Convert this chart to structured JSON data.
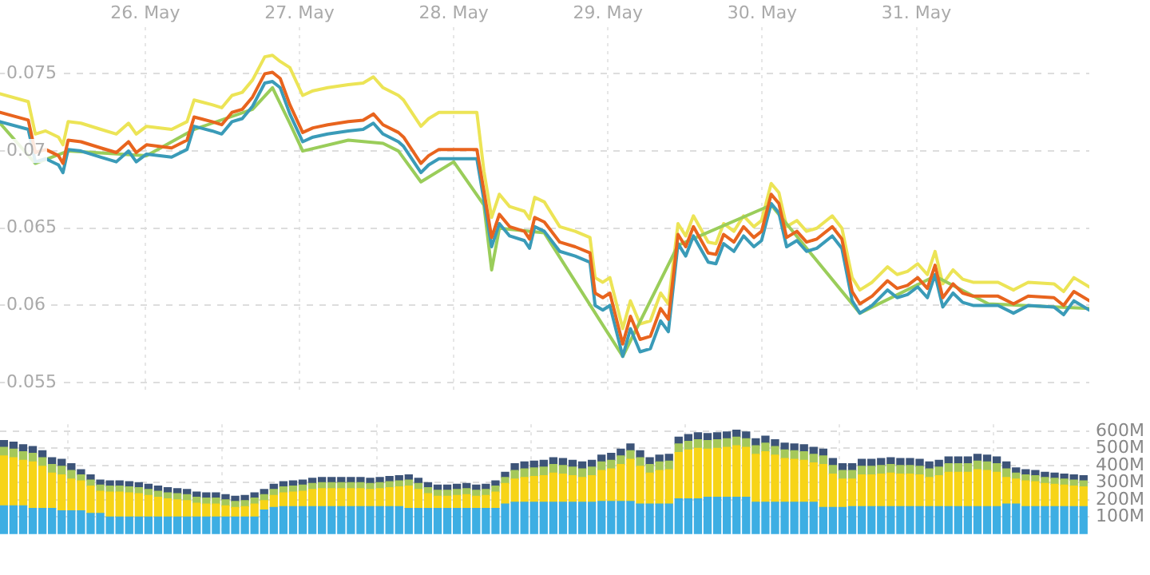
{
  "chart_data": [
    {
      "type": "line",
      "x": [
        "--05-25T01:24",
        "--05-25T05:48",
        "--05-25T06:54",
        "--05-25T08:30",
        "--05-25T10:30",
        "--05-25T11:12",
        "--05-25T12:00",
        "--05-25T14:00",
        "--05-25T17:06",
        "--05-25T19:30",
        "--05-25T21:24",
        "--05-25T22:36",
        "--05-26T00:12",
        "--05-26T04:06",
        "--05-26T06:30",
        "--05-26T07:36",
        "--05-26T10:24",
        "--05-26T11:54",
        "--05-26T13:30",
        "--05-26T15:06",
        "--05-26T16:42",
        "--05-26T18:36",
        "--05-26T19:48",
        "--05-26T21:00",
        "--05-26T22:30",
        "--05-27T00:30",
        "--05-27T02:06",
        "--05-27T04:24",
        "--05-27T07:36",
        "--05-27T09:54",
        "--05-27T11:30",
        "--05-27T13:00",
        "--05-27T15:24",
        "--05-27T16:12",
        "--05-27T18:54",
        "--05-27T20:06",
        "--05-27T21:42",
        "--05-28T00:00",
        "--05-28T03:36",
        "--05-28T04:42",
        "--05-28T05:54",
        "--05-28T07:06",
        "--05-28T08:42",
        "--05-28T11:00",
        "--05-28T11:48",
        "--05-28T12:36",
        "--05-28T14:06",
        "--05-28T16:30",
        "--05-28T18:54",
        "--05-28T21:12",
        "--05-28T22:00",
        "--05-28T23:12",
        "--05-29T00:18",
        "--05-29T02:18",
        "--05-29T03:30",
        "--05-29T05:00",
        "--05-29T06:36",
        "--05-29T08:12",
        "--05-29T09:24",
        "--05-29T10:54",
        "--05-29T12:06",
        "--05-29T13:18",
        "--05-29T15:36",
        "--05-29T16:48",
        "--05-29T18:00",
        "--05-29T19:36",
        "--05-29T21:06",
        "--05-29T22:42",
        "--05-29T23:54",
        "--05-30T01:24",
        "--05-30T02:36",
        "--05-30T03:48",
        "--05-30T05:24",
        "--05-30T06:54",
        "--05-30T08:30",
        "--05-30T10:54",
        "--05-30T12:24",
        "--05-30T14:00",
        "--05-30T15:12",
        "--05-30T17:06",
        "--05-30T19:30",
        "--05-30T21:00",
        "--05-30T22:36",
        "--05-31T00:12",
        "--05-31T01:42",
        "--05-31T02:54",
        "--05-31T04:06",
        "--05-31T05:42",
        "--05-31T07:12",
        "--05-31T08:48",
        "--05-31T11:12",
        "--05-31T12:42",
        "--05-31T15:06",
        "--05-31T17:24",
        "--05-31T21:24",
        "--05-31T22:54",
        "--06-01T00:30",
        "--06-01T02:54"
      ],
      "series": [
        {
          "color": "#e8641e",
          "values": [
            0.0725,
            0.072,
            0.0699,
            0.0701,
            0.0697,
            0.0692,
            0.0707,
            0.0706,
            0.0702,
            0.0699,
            0.0706,
            0.0699,
            0.0704,
            0.0702,
            0.0707,
            0.0722,
            0.0719,
            0.0717,
            0.0725,
            0.0727,
            0.0735,
            0.075,
            0.0751,
            0.0747,
            0.073,
            0.0712,
            0.0715,
            0.0717,
            0.0719,
            0.072,
            0.0724,
            0.0717,
            0.0712,
            0.0709,
            0.0692,
            0.0697,
            0.0701,
            0.0701,
            0.0701,
            0.0674,
            0.0644,
            0.0659,
            0.0651,
            0.0648,
            0.0643,
            0.0657,
            0.0654,
            0.0641,
            0.0638,
            0.0634,
            0.0608,
            0.0605,
            0.0608,
            0.0575,
            0.0593,
            0.0578,
            0.058,
            0.0598,
            0.0591,
            0.0646,
            0.0638,
            0.0651,
            0.0634,
            0.0633,
            0.0646,
            0.0641,
            0.0651,
            0.0644,
            0.0648,
            0.0672,
            0.0666,
            0.0644,
            0.0648,
            0.0641,
            0.0643,
            0.0651,
            0.0643,
            0.0609,
            0.0601,
            0.0606,
            0.0616,
            0.0611,
            0.0613,
            0.0618,
            0.0611,
            0.0626,
            0.0605,
            0.0614,
            0.0608,
            0.0606,
            0.0606,
            0.0606,
            0.0601,
            0.0606,
            0.0605,
            0.06,
            0.0609,
            0.0603
          ]
        },
        {
          "color": "#3a9bb8",
          "values": [
            0.0719,
            0.0714,
            0.0693,
            0.0695,
            0.0691,
            0.0686,
            0.0701,
            0.07,
            0.0696,
            0.0693,
            0.07,
            0.0693,
            0.0698,
            0.0696,
            0.0701,
            0.0716,
            0.0713,
            0.0711,
            0.0719,
            0.0721,
            0.0729,
            0.0744,
            0.0745,
            0.0741,
            0.0724,
            0.0706,
            0.0709,
            0.0711,
            0.0713,
            0.0714,
            0.0718,
            0.0711,
            0.0706,
            0.0703,
            0.0686,
            0.0691,
            0.0695,
            0.0695,
            0.0695,
            0.0668,
            0.0638,
            0.0653,
            0.0645,
            0.0642,
            0.0637,
            0.0651,
            0.0648,
            0.0635,
            0.0632,
            0.0628,
            0.06,
            0.0597,
            0.06,
            0.0567,
            0.0585,
            0.057,
            0.0572,
            0.059,
            0.0583,
            0.064,
            0.0632,
            0.0645,
            0.0628,
            0.0627,
            0.064,
            0.0635,
            0.0645,
            0.0638,
            0.0642,
            0.0666,
            0.066,
            0.0638,
            0.0642,
            0.0635,
            0.0637,
            0.0645,
            0.0637,
            0.0603,
            0.0595,
            0.06,
            0.061,
            0.0605,
            0.0607,
            0.0612,
            0.0605,
            0.062,
            0.0599,
            0.0608,
            0.0602,
            0.06,
            0.06,
            0.06,
            0.0595,
            0.06,
            0.0599,
            0.0594,
            0.0603,
            0.0597
          ]
        },
        {
          "color": "#9acd5a",
          "x": [
            "--05-25T01:24",
            "--05-25T06:54",
            "--05-25T12:00",
            "--05-26T00:12",
            "--05-26T07:36",
            "--05-26T16:42",
            "--05-26T19:48",
            "--05-26T22:30",
            "--05-27T00:30",
            "--05-27T07:36",
            "--05-27T13:00",
            "--05-27T15:24",
            "--05-27T18:54",
            "--05-28T00:00",
            "--05-28T04:42",
            "--05-28T05:54",
            "--05-28T07:06",
            "--05-28T14:06",
            "--05-29T02:18",
            "--05-29T10:54",
            "--05-30T01:24",
            "--05-30T15:12",
            "--05-31T02:54",
            "--05-31T11:12",
            "--06-01T02:54"
          ],
          "values": [
            0.0718,
            0.0692,
            0.07,
            0.0697,
            0.0714,
            0.0727,
            0.0741,
            0.0718,
            0.07,
            0.0707,
            0.0705,
            0.07,
            0.068,
            0.0693,
            0.0665,
            0.0623,
            0.065,
            0.0647,
            0.0567,
            0.0639,
            0.0665,
            0.0595,
            0.0619,
            0.0601,
            0.0598
          ]
        },
        {
          "color": "#ece456",
          "values": [
            0.0737,
            0.0732,
            0.0711,
            0.0713,
            0.0709,
            0.0704,
            0.0719,
            0.0718,
            0.0714,
            0.0711,
            0.0718,
            0.0711,
            0.0716,
            0.0714,
            0.0719,
            0.0733,
            0.073,
            0.0728,
            0.0736,
            0.0738,
            0.0746,
            0.0761,
            0.0762,
            0.0758,
            0.0754,
            0.0736,
            0.0739,
            0.0741,
            0.0743,
            0.0744,
            0.0748,
            0.0741,
            0.0736,
            0.0733,
            0.0716,
            0.0721,
            0.0725,
            0.0725,
            0.0725,
            0.0687,
            0.0657,
            0.0672,
            0.0664,
            0.0661,
            0.0656,
            0.067,
            0.0667,
            0.0651,
            0.0648,
            0.0644,
            0.0618,
            0.0615,
            0.0618,
            0.0585,
            0.0603,
            0.0588,
            0.059,
            0.0608,
            0.0601,
            0.0653,
            0.0645,
            0.0658,
            0.0641,
            0.064,
            0.0653,
            0.0648,
            0.0658,
            0.0651,
            0.0655,
            0.0679,
            0.0673,
            0.0651,
            0.0655,
            0.0648,
            0.065,
            0.0658,
            0.065,
            0.0618,
            0.061,
            0.0615,
            0.0625,
            0.062,
            0.0622,
            0.0627,
            0.062,
            0.0635,
            0.0614,
            0.0623,
            0.0617,
            0.0615,
            0.0615,
            0.0615,
            0.061,
            0.0615,
            0.0614,
            0.0609,
            0.0618,
            0.0612
          ]
        }
      ],
      "xlim": [
        "--05-25T01:24",
        "--06-01T02:54"
      ],
      "xticks": [
        {
          "value": "--05-26",
          "label": "26. May"
        },
        {
          "value": "--05-27",
          "label": "27. May"
        },
        {
          "value": "--05-28",
          "label": "28. May"
        },
        {
          "value": "--05-29",
          "label": "29. May"
        },
        {
          "value": "--05-30",
          "label": "30. May"
        },
        {
          "value": "--05-31",
          "label": "31. May"
        }
      ],
      "ylim": [
        0.0545,
        0.078
      ],
      "yticks": [
        0.055,
        0.06,
        0.065,
        0.07,
        0.075
      ],
      "grid": true,
      "marker": "none"
    },
    {
      "type": "bar",
      "stacked": true,
      "x": [
        "--05-25T02:00",
        "--05-25T03:30",
        "--05-25T05:00",
        "--05-25T06:30",
        "--05-25T08:00",
        "--05-25T09:30",
        "--05-25T11:00",
        "--05-25T12:30",
        "--05-25T14:00",
        "--05-25T15:30",
        "--05-25T17:00",
        "--05-25T18:30",
        "--05-25T20:00",
        "--05-25T21:30",
        "--05-25T23:00",
        "--05-26T00:30",
        "--05-26T02:00",
        "--05-26T03:30",
        "--05-26T05:00",
        "--05-26T06:30",
        "--05-26T08:00",
        "--05-26T09:30",
        "--05-26T11:00",
        "--05-26T12:30",
        "--05-26T14:00",
        "--05-26T15:30",
        "--05-26T17:00",
        "--05-26T18:30",
        "--05-26T20:00",
        "--05-26T21:30",
        "--05-26T23:00",
        "--05-27T00:30",
        "--05-27T02:00",
        "--05-27T03:30",
        "--05-27T05:00",
        "--05-27T06:30",
        "--05-27T08:00",
        "--05-27T09:30",
        "--05-27T11:00",
        "--05-27T12:30",
        "--05-27T14:00",
        "--05-27T15:30",
        "--05-27T17:00",
        "--05-27T18:30",
        "--05-27T20:00",
        "--05-27T21:30",
        "--05-27T23:00",
        "--05-28T00:30",
        "--05-28T02:00",
        "--05-28T03:30",
        "--05-28T05:00",
        "--05-28T06:30",
        "--05-28T08:00",
        "--05-28T09:30",
        "--05-28T11:00",
        "--05-28T12:30",
        "--05-28T14:00",
        "--05-28T15:30",
        "--05-28T17:00",
        "--05-28T18:30",
        "--05-28T20:00",
        "--05-28T21:30",
        "--05-28T23:00",
        "--05-29T00:30",
        "--05-29T02:00",
        "--05-29T03:30",
        "--05-29T05:00",
        "--05-29T06:30",
        "--05-29T08:00",
        "--05-29T09:30",
        "--05-29T11:00",
        "--05-29T12:30",
        "--05-29T14:00",
        "--05-29T15:30",
        "--05-29T17:00",
        "--05-29T18:30",
        "--05-29T20:00",
        "--05-29T21:30",
        "--05-29T23:00",
        "--05-30T00:30",
        "--05-30T02:00",
        "--05-30T03:30",
        "--05-30T05:00",
        "--05-30T06:30",
        "--05-30T08:00",
        "--05-30T09:30",
        "--05-30T11:00",
        "--05-30T12:30",
        "--05-30T14:00",
        "--05-30T15:30",
        "--05-30T17:00",
        "--05-30T18:30",
        "--05-30T20:00",
        "--05-30T21:30",
        "--05-30T23:00",
        "--05-31T00:30",
        "--05-31T02:00",
        "--05-31T03:30",
        "--05-31T05:00",
        "--05-31T06:30",
        "--05-31T08:00",
        "--05-31T09:30",
        "--05-31T11:00",
        "--05-31T12:30",
        "--05-31T14:00",
        "--05-31T15:30",
        "--05-31T17:00",
        "--05-31T18:30",
        "--05-31T20:00",
        "--05-31T21:30",
        "--05-31T23:00",
        "--06-01T00:30",
        "--06-01T02:00"
      ],
      "series": [
        {
          "color": "#3daee3",
          "values": [
            165,
            165,
            165,
            150,
            150,
            150,
            135,
            135,
            135,
            120,
            120,
            100,
            100,
            100,
            100,
            100,
            100,
            100,
            100,
            100,
            100,
            100,
            100,
            100,
            100,
            100,
            100,
            140,
            155,
            160,
            160,
            160,
            160,
            160,
            160,
            160,
            160,
            160,
            160,
            160,
            160,
            160,
            150,
            150,
            150,
            150,
            150,
            150,
            150,
            150,
            150,
            150,
            175,
            185,
            185,
            185,
            185,
            185,
            185,
            185,
            185,
            185,
            190,
            190,
            190,
            190,
            175,
            175,
            175,
            175,
            205,
            205,
            205,
            215,
            215,
            215,
            215,
            215,
            185,
            185,
            185,
            185,
            185,
            185,
            185,
            155,
            155,
            155,
            160,
            160,
            160,
            160,
            160,
            160,
            160,
            160,
            160,
            160,
            160,
            160,
            160,
            160,
            160,
            160,
            175,
            175,
            160,
            160,
            160,
            160,
            160,
            160,
            160
          ]
        },
        {
          "color": "#f7d417",
          "values": [
            290,
            280,
            265,
            270,
            245,
            205,
            210,
            185,
            175,
            160,
            130,
            145,
            145,
            140,
            135,
            125,
            115,
            105,
            100,
            95,
            80,
            75,
            75,
            65,
            55,
            60,
            75,
            55,
            70,
            80,
            85,
            90,
            100,
            105,
            105,
            105,
            105,
            105,
            100,
            105,
            110,
            115,
            130,
            110,
            85,
            70,
            70,
            75,
            80,
            70,
            75,
            95,
            120,
            135,
            145,
            150,
            155,
            170,
            165,
            155,
            145,
            155,
            180,
            190,
            215,
            245,
            220,
            180,
            195,
            200,
            270,
            285,
            295,
            280,
            285,
            290,
            300,
            290,
            280,
            295,
            275,
            255,
            250,
            245,
            230,
            250,
            195,
            165,
            160,
            185,
            185,
            190,
            195,
            190,
            190,
            185,
            170,
            180,
            200,
            200,
            200,
            215,
            210,
            200,
            155,
            145,
            150,
            145,
            135,
            130,
            125,
            120,
            115
          ]
        },
        {
          "color": "#a5c85a",
          "values": [
            50,
            50,
            50,
            50,
            50,
            50,
            50,
            50,
            35,
            35,
            35,
            35,
            35,
            35,
            35,
            35,
            35,
            35,
            35,
            35,
            35,
            35,
            35,
            35,
            35,
            35,
            35,
            35,
            35,
            35,
            35,
            35,
            35,
            35,
            35,
            35,
            35,
            35,
            35,
            35,
            35,
            35,
            35,
            35,
            35,
            35,
            35,
            35,
            35,
            35,
            35,
            35,
            35,
            50,
            50,
            50,
            50,
            50,
            50,
            50,
            50,
            50,
            50,
            50,
            50,
            50,
            50,
            50,
            50,
            50,
            50,
            50,
            50,
            50,
            50,
            50,
            50,
            50,
            50,
            50,
            50,
            50,
            50,
            50,
            50,
            50,
            50,
            50,
            50,
            50,
            50,
            50,
            50,
            50,
            50,
            50,
            50,
            50,
            50,
            50,
            50,
            50,
            50,
            50,
            50,
            35,
            35,
            35,
            35,
            35,
            35,
            35,
            35
          ]
        },
        {
          "color": "#3d5478",
          "values": [
            40,
            40,
            40,
            40,
            40,
            40,
            40,
            40,
            30,
            30,
            30,
            30,
            30,
            30,
            30,
            30,
            30,
            30,
            30,
            30,
            30,
            30,
            30,
            30,
            30,
            30,
            30,
            30,
            30,
            30,
            30,
            30,
            30,
            30,
            30,
            30,
            30,
            30,
            30,
            30,
            30,
            30,
            30,
            30,
            30,
            30,
            30,
            30,
            30,
            30,
            30,
            30,
            30,
            40,
            40,
            40,
            40,
            40,
            40,
            40,
            40,
            40,
            40,
            40,
            40,
            40,
            40,
            40,
            40,
            40,
            40,
            40,
            40,
            40,
            40,
            40,
            40,
            40,
            40,
            40,
            40,
            40,
            40,
            40,
            40,
            40,
            40,
            40,
            40,
            40,
            40,
            40,
            40,
            40,
            40,
            40,
            40,
            40,
            40,
            40,
            40,
            40,
            40,
            40,
            40,
            30,
            30,
            30,
            30,
            30,
            30,
            30,
            30
          ]
        }
      ],
      "xlim": [
        "--05-25T01:24",
        "--06-01T02:54"
      ],
      "xticks": [
        {
          "value": "--05-26",
          "label": null
        },
        {
          "value": "--05-27",
          "label": null
        },
        {
          "value": "--05-28",
          "label": null
        },
        {
          "value": "--05-29",
          "label": null
        },
        {
          "value": "--05-30",
          "label": null
        },
        {
          "value": "--05-31",
          "label": null
        }
      ],
      "ylim": [
        0,
        640
      ],
      "yticks": [
        {
          "value": 100,
          "label": "100M"
        },
        {
          "value": 200,
          "label": "200M"
        },
        {
          "value": 300,
          "label": "300M"
        },
        {
          "value": 400,
          "label": "400M"
        },
        {
          "value": 500,
          "label": "500M"
        },
        {
          "value": 600,
          "label": "600M"
        }
      ],
      "grid": true,
      "tick_labels": "y"
    }
  ]
}
